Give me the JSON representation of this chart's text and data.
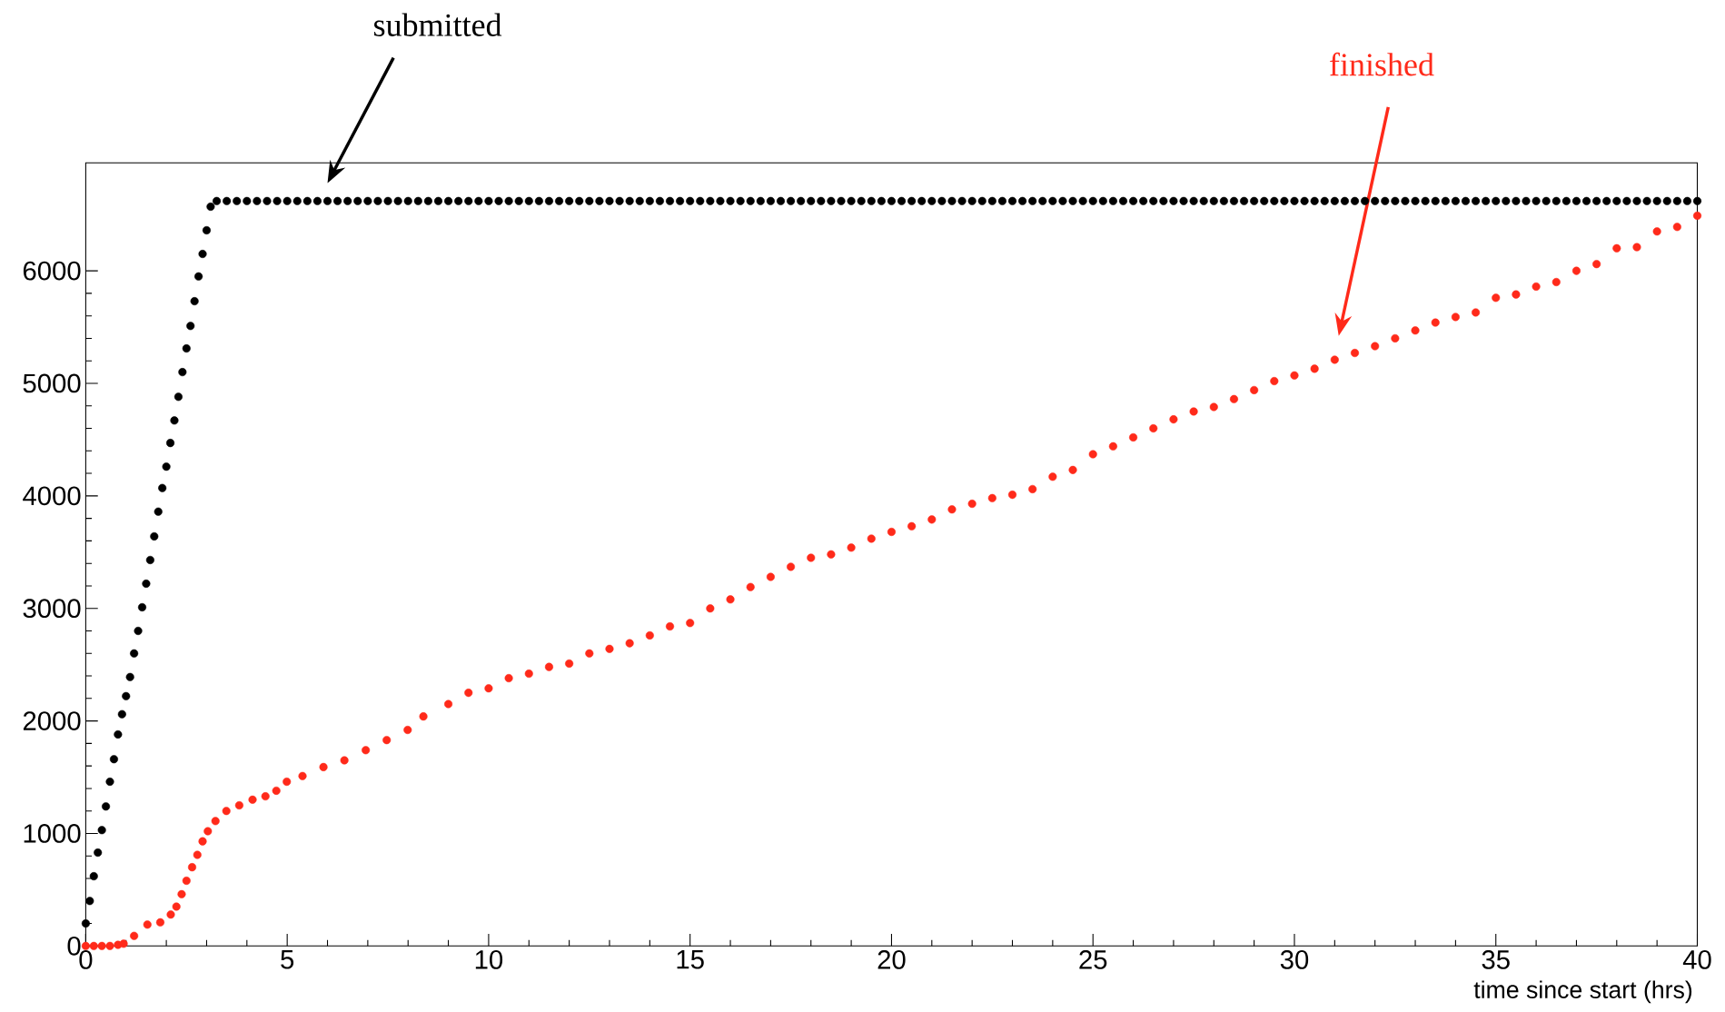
{
  "chart_data": {
    "type": "scatter",
    "xlabel": "time since start (hrs)",
    "xlim": [
      0,
      40
    ],
    "ylim": [
      0,
      6960
    ],
    "xticks": [
      0,
      5,
      10,
      15,
      20,
      25,
      30,
      35,
      40
    ],
    "yticks": [
      0,
      1000,
      2000,
      3000,
      4000,
      5000,
      6000
    ],
    "marker": "circle",
    "grid": false,
    "annotations": [
      "submitted",
      "finished"
    ],
    "series": [
      {
        "color": "#000000",
        "x": [
          0,
          0.1,
          0.2,
          0.3,
          0.4,
          0.5,
          0.6,
          0.7,
          0.8,
          0.9,
          1.0,
          1.1,
          1.2,
          1.3,
          1.4,
          1.5,
          1.6,
          1.7,
          1.8,
          1.9,
          2.0,
          2.1,
          2.2,
          2.3,
          2.4,
          2.5,
          2.6,
          2.7,
          2.8,
          2.9,
          3.0,
          3.1,
          3.25,
          3.5,
          3.75,
          4,
          4.25,
          4.5,
          4.75,
          5,
          5.25,
          5.5,
          5.75,
          6,
          6.25,
          6.5,
          6.75,
          7,
          7.25,
          7.5,
          7.75,
          8,
          8.25,
          8.5,
          8.75,
          9,
          9.25,
          9.5,
          9.75,
          10,
          10.25,
          10.5,
          10.75,
          11,
          11.25,
          11.5,
          11.75,
          12,
          12.25,
          12.5,
          12.75,
          13,
          13.25,
          13.5,
          13.75,
          14,
          14.25,
          14.5,
          14.75,
          15,
          15.25,
          15.5,
          15.75,
          16,
          16.25,
          16.5,
          16.75,
          17,
          17.25,
          17.5,
          17.75,
          18,
          18.25,
          18.5,
          18.75,
          19,
          19.25,
          19.5,
          19.75,
          20,
          20.25,
          20.5,
          20.75,
          21,
          21.25,
          21.5,
          21.75,
          22,
          22.25,
          22.5,
          22.75,
          23,
          23.25,
          23.5,
          23.75,
          24,
          24.25,
          24.5,
          24.75,
          25,
          25.25,
          25.5,
          25.75,
          26,
          26.25,
          26.5,
          26.75,
          27,
          27.25,
          27.5,
          27.75,
          28,
          28.25,
          28.5,
          28.75,
          29,
          29.25,
          29.5,
          29.75,
          30,
          30.25,
          30.5,
          30.75,
          31,
          31.25,
          31.5,
          31.75,
          32,
          32.25,
          32.5,
          32.75,
          33,
          33.25,
          33.5,
          33.75,
          34,
          34.25,
          34.5,
          34.75,
          35,
          35.25,
          35.5,
          35.75,
          36,
          36.25,
          36.5,
          36.75,
          37,
          37.25,
          37.5,
          37.75,
          38,
          38.25,
          38.5,
          38.75,
          39,
          39.25,
          39.5,
          39.75,
          40
        ],
        "values": [
          200,
          400,
          620,
          830,
          1030,
          1240,
          1460,
          1660,
          1880,
          2060,
          2220,
          2390,
          2600,
          2800,
          3010,
          3220,
          3430,
          3640,
          3860,
          4070,
          4260,
          4470,
          4670,
          4880,
          5100,
          5310,
          5510,
          5730,
          5950,
          6150,
          6360,
          6570,
          6620,
          6620,
          6620,
          6620,
          6620,
          6620,
          6620,
          6620,
          6620,
          6620,
          6620,
          6620,
          6620,
          6620,
          6620,
          6620,
          6620,
          6620,
          6620,
          6620,
          6620,
          6620,
          6620,
          6620,
          6620,
          6620,
          6620,
          6620,
          6620,
          6620,
          6620,
          6620,
          6620,
          6620,
          6620,
          6620,
          6620,
          6620,
          6620,
          6620,
          6620,
          6620,
          6620,
          6620,
          6620,
          6620,
          6620,
          6620,
          6620,
          6620,
          6620,
          6620,
          6620,
          6620,
          6620,
          6620,
          6620,
          6620,
          6620,
          6620,
          6620,
          6620,
          6620,
          6620,
          6620,
          6620,
          6620,
          6620,
          6620,
          6620,
          6620,
          6620,
          6620,
          6620,
          6620,
          6620,
          6620,
          6620,
          6620,
          6620,
          6620,
          6620,
          6620,
          6620,
          6620,
          6620,
          6620,
          6620,
          6620,
          6620,
          6620,
          6620,
          6620,
          6620,
          6620,
          6620,
          6620,
          6620,
          6620,
          6620,
          6620,
          6620,
          6620,
          6620,
          6620,
          6620,
          6620,
          6620,
          6620,
          6620,
          6620,
          6620,
          6620,
          6620,
          6620,
          6620,
          6620,
          6620,
          6620,
          6620,
          6620,
          6620,
          6620,
          6620,
          6620,
          6620,
          6620,
          6620,
          6620,
          6620,
          6620,
          6620,
          6620,
          6620,
          6620,
          6620,
          6620,
          6620,
          6620,
          6620,
          6620,
          6620,
          6620,
          6620,
          6620,
          6620,
          6620,
          6620
        ]
      },
      {
        "color": "#ff2a1a",
        "x": [
          0,
          0.2,
          0.4,
          0.6,
          0.8,
          0.94,
          1.2,
          1.53,
          1.85,
          2.11,
          2.25,
          2.38,
          2.5,
          2.64,
          2.77,
          2.9,
          3.03,
          3.22,
          3.49,
          3.81,
          4.14,
          4.46,
          4.73,
          4.99,
          5.38,
          5.9,
          6.42,
          6.95,
          7.47,
          7.99,
          8.38,
          9,
          9.5,
          10,
          10.5,
          11,
          11.5,
          12,
          12.5,
          13,
          13.5,
          14,
          14.5,
          15,
          15.5,
          16,
          16.5,
          17,
          17.5,
          18,
          18.5,
          19,
          19.5,
          20,
          20.5,
          21,
          21.5,
          22,
          22.5,
          23,
          23.5,
          24,
          24.5,
          25,
          25.5,
          26,
          26.5,
          27,
          27.5,
          28,
          28.5,
          29,
          29.5,
          30,
          30.5,
          31,
          31.5,
          32,
          32.5,
          33,
          33.5,
          34,
          34.5,
          35,
          35.5,
          36,
          36.5,
          37,
          37.5,
          38,
          38.5,
          39,
          39.5,
          40
        ],
        "values": [
          0,
          0,
          0,
          0,
          10,
          20,
          90,
          190,
          210,
          280,
          350,
          460,
          580,
          700,
          810,
          930,
          1020,
          1110,
          1200,
          1250,
          1300,
          1330,
          1380,
          1460,
          1510,
          1590,
          1650,
          1740,
          1830,
          1920,
          2040,
          2150,
          2250,
          2290,
          2380,
          2420,
          2480,
          2510,
          2600,
          2640,
          2690,
          2760,
          2840,
          2870,
          3000,
          3080,
          3190,
          3280,
          3370,
          3450,
          3480,
          3540,
          3620,
          3680,
          3730,
          3790,
          3880,
          3930,
          3980,
          4010,
          4060,
          4170,
          4230,
          4370,
          4440,
          4520,
          4600,
          4680,
          4750,
          4790,
          4860,
          4940,
          5020,
          5070,
          5130,
          5210,
          5270,
          5330,
          5400,
          5470,
          5540,
          5590,
          5630,
          5760,
          5790,
          5860,
          5900,
          6000,
          6060,
          6200,
          6210,
          6350,
          6390,
          6490
        ]
      }
    ]
  }
}
